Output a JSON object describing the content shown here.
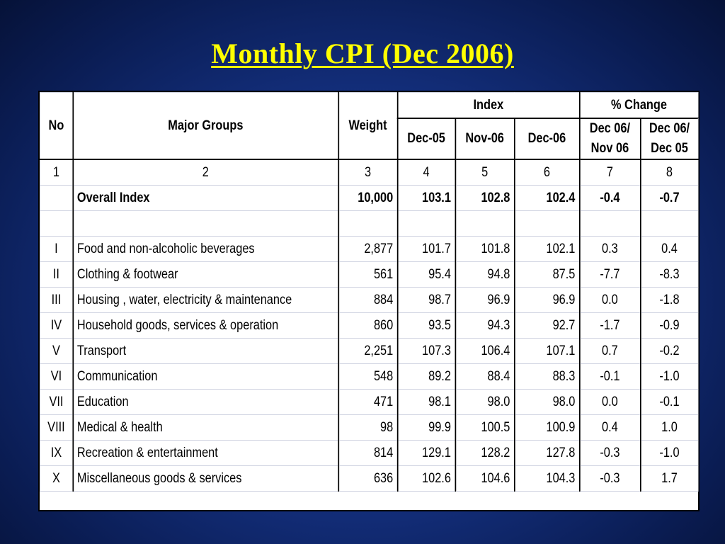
{
  "title": "Monthly CPI (Dec 2006)",
  "headers": {
    "no": "No",
    "major_groups": "Major Groups",
    "weight": "Weight",
    "index_group": "Index",
    "change_group": "% Change",
    "dec05": "Dec-05",
    "nov06": "Nov-06",
    "dec06": "Dec-06",
    "chg_mom_line1": "Dec 06/",
    "chg_mom_line2": "Nov 06",
    "chg_yoy_line1": "Dec 06/",
    "chg_yoy_line2": "Dec 05"
  },
  "column_numbers": [
    "1",
    "2",
    "3",
    "4",
    "5",
    "6",
    "7",
    "8"
  ],
  "overall": {
    "label": "Overall Index",
    "weight": "10,000",
    "dec05": "103.1",
    "nov06": "102.8",
    "dec06": "102.4",
    "chg_mom": "-0.4",
    "chg_yoy": "-0.7"
  },
  "rows": [
    {
      "no": "I",
      "group": "Food and non-alcoholic beverages",
      "weight": "2,877",
      "dec05": "101.7",
      "nov06": "101.8",
      "dec06": "102.1",
      "chg_mom": "0.3",
      "chg_yoy": "0.4"
    },
    {
      "no": "II",
      "group": "Clothing & footwear",
      "weight": "561",
      "dec05": "95.4",
      "nov06": "94.8",
      "dec06": "87.5",
      "chg_mom": "-7.7",
      "chg_yoy": "-8.3"
    },
    {
      "no": "III",
      "group": "Housing , water, electricity & maintenance",
      "weight": "884",
      "dec05": "98.7",
      "nov06": "96.9",
      "dec06": "96.9",
      "chg_mom": "0.0",
      "chg_yoy": "-1.8"
    },
    {
      "no": "IV",
      "group": "Household goods, services & operation",
      "weight": "860",
      "dec05": "93.5",
      "nov06": "94.3",
      "dec06": "92.7",
      "chg_mom": "-1.7",
      "chg_yoy": "-0.9"
    },
    {
      "no": "V",
      "group": "Transport",
      "weight": "2,251",
      "dec05": "107.3",
      "nov06": "106.4",
      "dec06": "107.1",
      "chg_mom": "0.7",
      "chg_yoy": "-0.2"
    },
    {
      "no": "VI",
      "group": "Communication",
      "weight": "548",
      "dec05": "89.2",
      "nov06": "88.4",
      "dec06": "88.3",
      "chg_mom": "-0.1",
      "chg_yoy": "-1.0"
    },
    {
      "no": "VII",
      "group": "Education",
      "weight": "471",
      "dec05": "98.1",
      "nov06": "98.0",
      "dec06": "98.0",
      "chg_mom": "0.0",
      "chg_yoy": "-0.1"
    },
    {
      "no": "VIII",
      "group": "Medical & health",
      "weight": "98",
      "dec05": "99.9",
      "nov06": "100.5",
      "dec06": "100.9",
      "chg_mom": "0.4",
      "chg_yoy": "1.0"
    },
    {
      "no": "IX",
      "group": "Recreation & entertainment",
      "weight": "814",
      "dec05": "129.1",
      "nov06": "128.2",
      "dec06": "127.8",
      "chg_mom": "-0.3",
      "chg_yoy": "-1.0"
    },
    {
      "no": "X",
      "group": "Miscellaneous goods & services",
      "weight": "636",
      "dec05": "102.6",
      "nov06": "104.6",
      "dec06": "104.3",
      "chg_mom": "-0.3",
      "chg_yoy": "1.7"
    }
  ],
  "colors": {
    "background": "#14307f",
    "title": "#ffff00",
    "table_bg": "#ffffff"
  }
}
